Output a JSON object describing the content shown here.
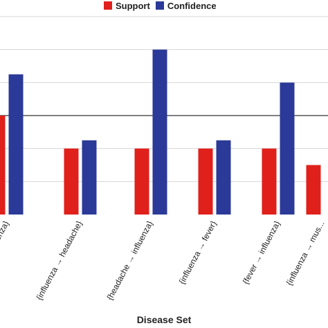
{
  "chart_data": {
    "type": "bar",
    "xlabel": "Disease Set",
    "ylabel": "",
    "ylim": [
      0,
      1.2
    ],
    "legend_position": "top",
    "grid": true,
    "categories": [
      "{... → influenza}",
      "{influenza → headache}",
      "{headache → influenza}",
      "{influenza → fever}",
      "{fever → influenza}",
      "{influenza → mus..."
    ],
    "series": [
      {
        "name": "Support",
        "color": "#e0201b",
        "values": [
          0.6,
          0.4,
          0.4,
          0.4,
          0.4,
          0.3
        ]
      },
      {
        "name": "Confidence",
        "color": "#2b3a98",
        "values": [
          0.85,
          0.45,
          1.0,
          0.45,
          0.8,
          null
        ]
      }
    ],
    "reference_line": 0.6
  }
}
